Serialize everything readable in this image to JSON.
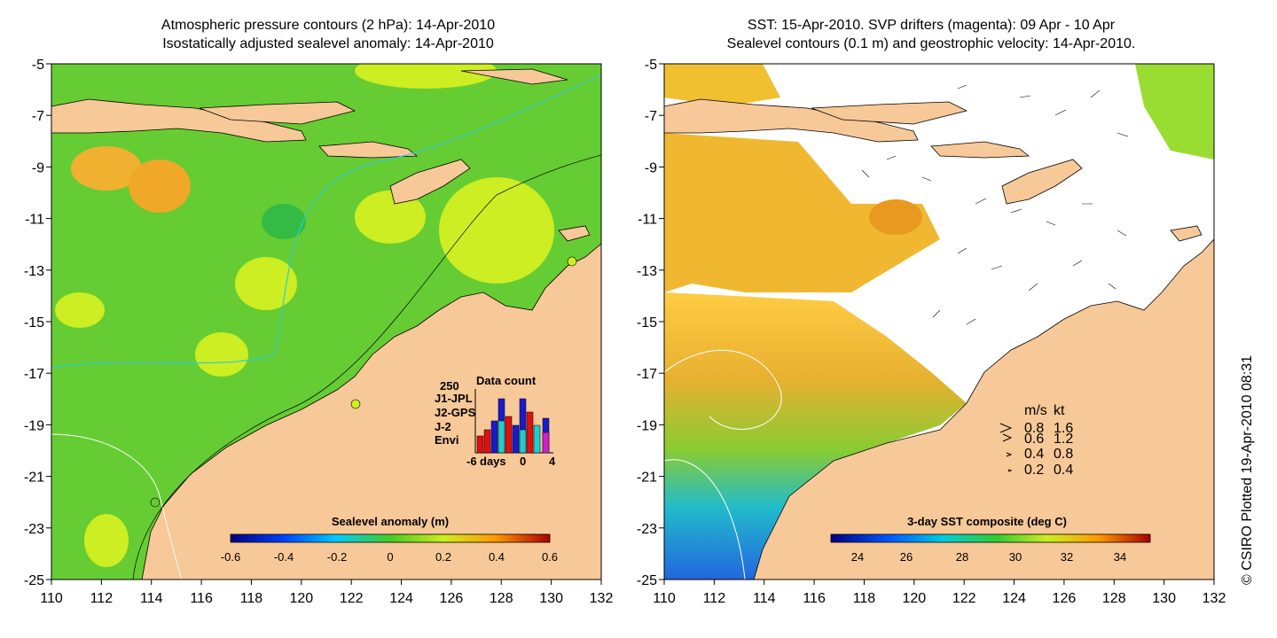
{
  "left_panel": {
    "title_line1": "Atmospheric pressure contours (2 hPa): 14-Apr-2010",
    "title_line2": "Isostatically adjusted sealevel anomaly: 14-Apr-2010",
    "colorbar": {
      "label": "Sealevel anomaly (m)",
      "ticks": [
        "-0.6",
        "-0.4",
        "-0.2",
        "0",
        "0.2",
        "0.4",
        "0.6"
      ]
    },
    "data_count": {
      "title": "Data count",
      "max_label": "250",
      "legend": [
        {
          "label": "J1-JPL",
          "color": "#1a1acc"
        },
        {
          "label": "J2-GPS",
          "color": "#cc22cc"
        },
        {
          "label": "J-2",
          "color": "#e01010"
        },
        {
          "label": "Envi",
          "color": "#22cccc"
        }
      ],
      "x_ticks": [
        "-6",
        "days",
        "0",
        "4"
      ]
    }
  },
  "right_panel": {
    "title_line1": "SST: 15-Apr-2010. SVP drifters (magenta): 09 Apr - 10 Apr",
    "title_line2": "Sealevel contours (0.1 m) and geostrophic velocity: 14-Apr-2010.",
    "colorbar": {
      "label": "3-day SST composite (deg C)",
      "ticks": [
        "24",
        "26",
        "28",
        "30",
        "32",
        "34"
      ]
    },
    "velocity_legend": {
      "header_ms": "m/s",
      "header_kt": "kt",
      "rows": [
        {
          "ms": "0.8",
          "kt": "1.6"
        },
        {
          "ms": "0.6",
          "kt": "1.2"
        },
        {
          "ms": "0.4",
          "kt": "0.8"
        },
        {
          "ms": "0.2",
          "kt": "0.4"
        }
      ]
    }
  },
  "axes": {
    "y_ticks": [
      "-5",
      "-7",
      "-9",
      "-11",
      "-13",
      "-15",
      "-17",
      "-19",
      "-21",
      "-23",
      "-25"
    ],
    "x_ticks": [
      "110",
      "112",
      "114",
      "116",
      "118",
      "120",
      "122",
      "124",
      "126",
      "128",
      "130",
      "132"
    ]
  },
  "credit": "© CSIRO Plotted 19-Apr-2010 08:31",
  "colors": {
    "land": "#f7c898",
    "sea_green": "#66cc33",
    "sea_yellow": "#ccee22",
    "sea_orange": "#ee9922"
  }
}
